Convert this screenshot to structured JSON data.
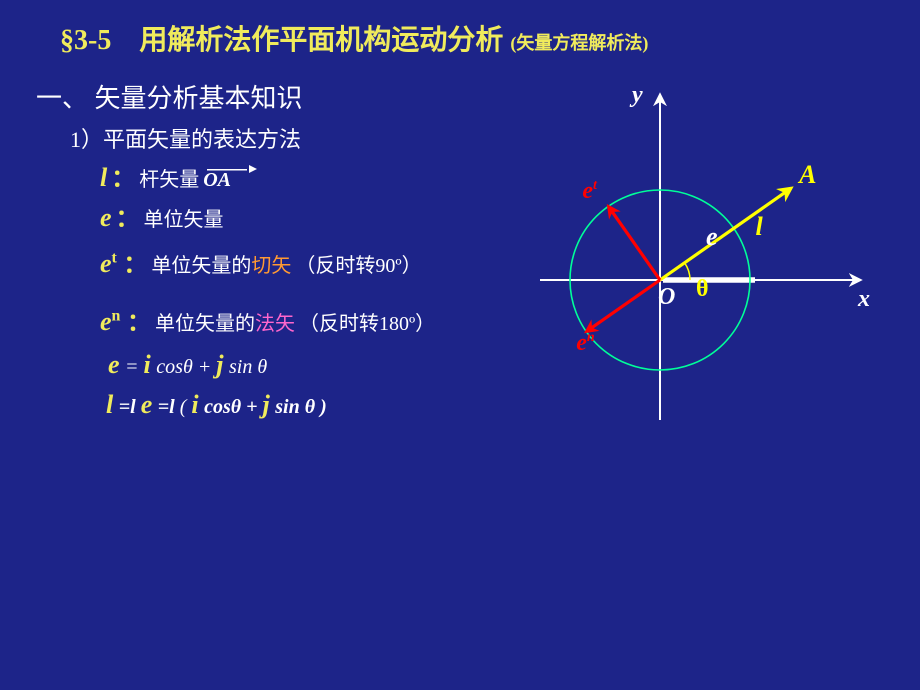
{
  "title": {
    "section": "§3-5",
    "main": "用解析法作平面机构运动分析",
    "sub": "(矢量方程解析法)"
  },
  "heading1": "一、 矢量分析基本知识",
  "heading2": "1）平面矢量的表达方法",
  "definitions": {
    "l": {
      "sym": "l",
      "colon": "：",
      "text": "杆矢量",
      "vector": "OA"
    },
    "e": {
      "sym": "e",
      "colon": "：",
      "text": "单位矢量"
    },
    "et": {
      "sym": "e",
      "sup": "t",
      "colon": "：",
      "pre": "单位矢量的",
      "highlight": "切矢",
      "post": "（反时转90º）"
    },
    "en": {
      "sym": "e",
      "sup": "n",
      "colon": "：",
      "pre": "单位矢量的",
      "highlight": "法矢",
      "post": "（反时转180º）"
    }
  },
  "equations": {
    "eq1_parts": {
      "e": "e",
      "eq": " = ",
      "i": "i",
      "cost": " cosθ + ",
      "j": "j",
      "sint": " sin θ"
    },
    "eq2_parts": {
      "l1": "l",
      "eqle": " =l ",
      "e2": "e",
      "eql": " =l ",
      "open": " ( ",
      "i": "i",
      "cost": " cosθ + ",
      "j": "j",
      "sint": " sin θ )"
    }
  },
  "diagram": {
    "labels": {
      "y": "y",
      "x": "x",
      "A": "A",
      "l": "l",
      "e": "e",
      "O": "O",
      "theta": "θ",
      "et": "e",
      "et_sup": "t",
      "en": "e",
      "en_sup": "n"
    },
    "style": {
      "axis_color": "#ffffff",
      "circle_color": "#00ff99",
      "l_color": "#ffff00",
      "e_color": "#00ff99",
      "et_color": "#ff0000",
      "en_color": "#ff0000",
      "theta_color": "#ffff00",
      "a_color": "#ffff00",
      "l_label_color": "#ffff00",
      "e_label_color": "#00ff99",
      "et_label_color": "#ff0000",
      "en_label_color": "#ff0000",
      "axis_label_color": "#ffffff",
      "o_label_color": "#ffffff",
      "circle_r": 90,
      "angle_deg": 35,
      "l_len": 160,
      "e_len": 90,
      "stroke_axis": 2,
      "stroke_circle": 1.6,
      "stroke_vec": 3.2
    }
  },
  "colors": {
    "bg": "#1d2489",
    "yellow": "#f0eb5c",
    "orange": "#ff9933",
    "pink": "#ff66cc",
    "white": "#ffffff"
  }
}
